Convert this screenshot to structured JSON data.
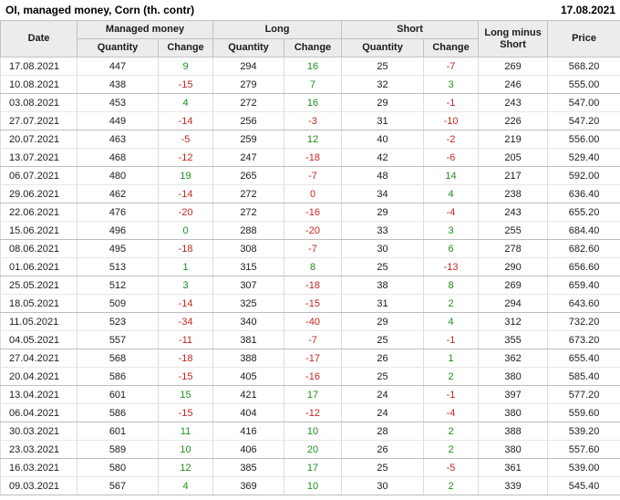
{
  "header": {
    "title": "OI, managed money, Corn (th. contr)",
    "report_date": "17.08.2021"
  },
  "colors": {
    "positive": "#1e8e1e",
    "negative": "#c5271f",
    "header_bg": "#ececec",
    "text": "#1c1c1c"
  },
  "table": {
    "group_headers": {
      "date": "Date",
      "managed_money": "Managed money",
      "long": "Long",
      "short": "Short",
      "long_minus_short": "Long minus Short",
      "price": "Price"
    },
    "sub_headers": {
      "quantity": "Quantity",
      "change": "Change"
    },
    "rows": [
      {
        "date": "17.08.2021",
        "mm_qty": "447",
        "mm_chg": "9",
        "mm_chg_c": "positive",
        "long_qty": "294",
        "long_chg": "16",
        "long_chg_c": "positive",
        "short_qty": "25",
        "short_chg": "-7",
        "short_chg_c": "negative",
        "lms": "269",
        "price": "568.20"
      },
      {
        "date": "10.08.2021",
        "mm_qty": "438",
        "mm_chg": "-15",
        "mm_chg_c": "negative",
        "long_qty": "279",
        "long_chg": "7",
        "long_chg_c": "positive",
        "short_qty": "32",
        "short_chg": "3",
        "short_chg_c": "positive",
        "lms": "246",
        "price": "555.00"
      },
      {
        "date": "03.08.2021",
        "mm_qty": "453",
        "mm_chg": "4",
        "mm_chg_c": "positive",
        "long_qty": "272",
        "long_chg": "16",
        "long_chg_c": "positive",
        "short_qty": "29",
        "short_chg": "-1",
        "short_chg_c": "negative",
        "lms": "243",
        "price": "547.00"
      },
      {
        "date": "27.07.2021",
        "mm_qty": "449",
        "mm_chg": "-14",
        "mm_chg_c": "negative",
        "long_qty": "256",
        "long_chg": "-3",
        "long_chg_c": "negative",
        "short_qty": "31",
        "short_chg": "-10",
        "short_chg_c": "negative",
        "lms": "226",
        "price": "547.20"
      },
      {
        "date": "20.07.2021",
        "mm_qty": "463",
        "mm_chg": "-5",
        "mm_chg_c": "negative",
        "long_qty": "259",
        "long_chg": "12",
        "long_chg_c": "positive",
        "short_qty": "40",
        "short_chg": "-2",
        "short_chg_c": "negative",
        "lms": "219",
        "price": "556.00"
      },
      {
        "date": "13.07.2021",
        "mm_qty": "468",
        "mm_chg": "-12",
        "mm_chg_c": "negative",
        "long_qty": "247",
        "long_chg": "-18",
        "long_chg_c": "negative",
        "short_qty": "42",
        "short_chg": "-6",
        "short_chg_c": "negative",
        "lms": "205",
        "price": "529.40"
      },
      {
        "date": "06.07.2021",
        "mm_qty": "480",
        "mm_chg": "19",
        "mm_chg_c": "positive",
        "long_qty": "265",
        "long_chg": "-7",
        "long_chg_c": "negative",
        "short_qty": "48",
        "short_chg": "14",
        "short_chg_c": "positive",
        "lms": "217",
        "price": "592.00"
      },
      {
        "date": "29.06.2021",
        "mm_qty": "462",
        "mm_chg": "-14",
        "mm_chg_c": "negative",
        "long_qty": "272",
        "long_chg": "0",
        "long_chg_c": "negative",
        "short_qty": "34",
        "short_chg": "4",
        "short_chg_c": "positive",
        "lms": "238",
        "price": "636.40"
      },
      {
        "date": "22.06.2021",
        "mm_qty": "476",
        "mm_chg": "-20",
        "mm_chg_c": "negative",
        "long_qty": "272",
        "long_chg": "-16",
        "long_chg_c": "negative",
        "short_qty": "29",
        "short_chg": "-4",
        "short_chg_c": "negative",
        "lms": "243",
        "price": "655.20"
      },
      {
        "date": "15.06.2021",
        "mm_qty": "496",
        "mm_chg": "0",
        "mm_chg_c": "positive",
        "long_qty": "288",
        "long_chg": "-20",
        "long_chg_c": "negative",
        "short_qty": "33",
        "short_chg": "3",
        "short_chg_c": "positive",
        "lms": "255",
        "price": "684.40"
      },
      {
        "date": "08.06.2021",
        "mm_qty": "495",
        "mm_chg": "-18",
        "mm_chg_c": "negative",
        "long_qty": "308",
        "long_chg": "-7",
        "long_chg_c": "negative",
        "short_qty": "30",
        "short_chg": "6",
        "short_chg_c": "positive",
        "lms": "278",
        "price": "682.60"
      },
      {
        "date": "01.06.2021",
        "mm_qty": "513",
        "mm_chg": "1",
        "mm_chg_c": "positive",
        "long_qty": "315",
        "long_chg": "8",
        "long_chg_c": "positive",
        "short_qty": "25",
        "short_chg": "-13",
        "short_chg_c": "negative",
        "lms": "290",
        "price": "656.60"
      },
      {
        "date": "25.05.2021",
        "mm_qty": "512",
        "mm_chg": "3",
        "mm_chg_c": "positive",
        "long_qty": "307",
        "long_chg": "-18",
        "long_chg_c": "negative",
        "short_qty": "38",
        "short_chg": "8",
        "short_chg_c": "positive",
        "lms": "269",
        "price": "659.40"
      },
      {
        "date": "18.05.2021",
        "mm_qty": "509",
        "mm_chg": "-14",
        "mm_chg_c": "negative",
        "long_qty": "325",
        "long_chg": "-15",
        "long_chg_c": "negative",
        "short_qty": "31",
        "short_chg": "2",
        "short_chg_c": "positive",
        "lms": "294",
        "price": "643.60"
      },
      {
        "date": "11.05.2021",
        "mm_qty": "523",
        "mm_chg": "-34",
        "mm_chg_c": "negative",
        "long_qty": "340",
        "long_chg": "-40",
        "long_chg_c": "negative",
        "short_qty": "29",
        "short_chg": "4",
        "short_chg_c": "positive",
        "lms": "312",
        "price": "732.20"
      },
      {
        "date": "04.05.2021",
        "mm_qty": "557",
        "mm_chg": "-11",
        "mm_chg_c": "negative",
        "long_qty": "381",
        "long_chg": "-7",
        "long_chg_c": "negative",
        "short_qty": "25",
        "short_chg": "-1",
        "short_chg_c": "negative",
        "lms": "355",
        "price": "673.20"
      },
      {
        "date": "27.04.2021",
        "mm_qty": "568",
        "mm_chg": "-18",
        "mm_chg_c": "negative",
        "long_qty": "388",
        "long_chg": "-17",
        "long_chg_c": "negative",
        "short_qty": "26",
        "short_chg": "1",
        "short_chg_c": "positive",
        "lms": "362",
        "price": "655.40"
      },
      {
        "date": "20.04.2021",
        "mm_qty": "586",
        "mm_chg": "-15",
        "mm_chg_c": "negative",
        "long_qty": "405",
        "long_chg": "-16",
        "long_chg_c": "negative",
        "short_qty": "25",
        "short_chg": "2",
        "short_chg_c": "positive",
        "lms": "380",
        "price": "585.40"
      },
      {
        "date": "13.04.2021",
        "mm_qty": "601",
        "mm_chg": "15",
        "mm_chg_c": "positive",
        "long_qty": "421",
        "long_chg": "17",
        "long_chg_c": "positive",
        "short_qty": "24",
        "short_chg": "-1",
        "short_chg_c": "negative",
        "lms": "397",
        "price": "577.20"
      },
      {
        "date": "06.04.2021",
        "mm_qty": "586",
        "mm_chg": "-15",
        "mm_chg_c": "negative",
        "long_qty": "404",
        "long_chg": "-12",
        "long_chg_c": "negative",
        "short_qty": "24",
        "short_chg": "-4",
        "short_chg_c": "negative",
        "lms": "380",
        "price": "559.60"
      },
      {
        "date": "30.03.2021",
        "mm_qty": "601",
        "mm_chg": "11",
        "mm_chg_c": "positive",
        "long_qty": "416",
        "long_chg": "10",
        "long_chg_c": "positive",
        "short_qty": "28",
        "short_chg": "2",
        "short_chg_c": "positive",
        "lms": "388",
        "price": "539.20"
      },
      {
        "date": "23.03.2021",
        "mm_qty": "589",
        "mm_chg": "10",
        "mm_chg_c": "positive",
        "long_qty": "406",
        "long_chg": "20",
        "long_chg_c": "positive",
        "short_qty": "26",
        "short_chg": "2",
        "short_chg_c": "positive",
        "lms": "380",
        "price": "557.60"
      },
      {
        "date": "16.03.2021",
        "mm_qty": "580",
        "mm_chg": "12",
        "mm_chg_c": "positive",
        "long_qty": "385",
        "long_chg": "17",
        "long_chg_c": "positive",
        "short_qty": "25",
        "short_chg": "-5",
        "short_chg_c": "negative",
        "lms": "361",
        "price": "539.00"
      },
      {
        "date": "09.03.2021",
        "mm_qty": "567",
        "mm_chg": "4",
        "mm_chg_c": "positive",
        "long_qty": "369",
        "long_chg": "10",
        "long_chg_c": "positive",
        "short_qty": "30",
        "short_chg": "2",
        "short_chg_c": "positive",
        "lms": "339",
        "price": "545.40"
      }
    ]
  }
}
